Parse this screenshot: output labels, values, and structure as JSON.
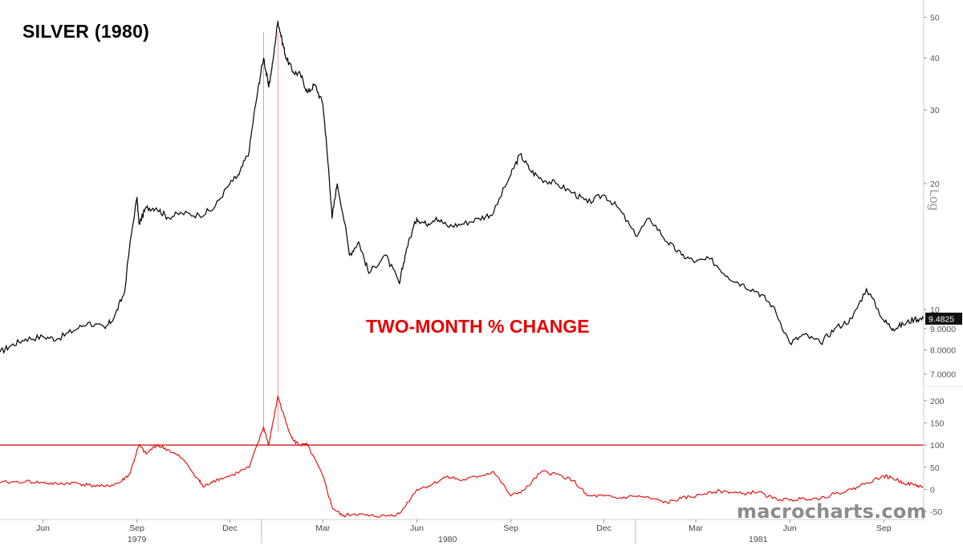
{
  "title": "SILVER (1980)",
  "annotation": "TWO-MONTH % CHANGE",
  "watermark": "macrocharts.com",
  "log_label": "Log",
  "colors": {
    "price": "#000000",
    "change": "#e60000",
    "reference": "#cc0000",
    "marker": "#f08080"
  },
  "chart_data": [
    {
      "type": "line",
      "title": "SILVER (1980)",
      "scale": "log",
      "ylim": [
        6.6,
        55
      ],
      "y_ticks": [
        {
          "value": 50,
          "label": "50"
        },
        {
          "value": 40,
          "label": "40"
        },
        {
          "value": 30,
          "label": "30"
        },
        {
          "value": 20,
          "label": "20"
        },
        {
          "value": 10,
          "label": "10"
        },
        {
          "value": 9,
          "label": "9.0000"
        },
        {
          "value": 8,
          "label": "8.0000"
        },
        {
          "value": 7,
          "label": "7.0000"
        }
      ],
      "last_value_label": "9.4825",
      "last_value": 9.4825,
      "x_ticks": [
        {
          "date": "1979-06-01",
          "label": "Jun"
        },
        {
          "date": "1979-09-01",
          "label": "Sep"
        },
        {
          "date": "1979-12-01",
          "label": "Dec"
        },
        {
          "date": "1980-03-01",
          "label": "Mar"
        },
        {
          "date": "1980-06-01",
          "label": "Jun"
        },
        {
          "date": "1980-09-01",
          "label": "Sep"
        },
        {
          "date": "1980-12-01",
          "label": "Dec"
        },
        {
          "date": "1981-03-01",
          "label": "Mar"
        },
        {
          "date": "1981-06-01",
          "label": "Jun"
        },
        {
          "date": "1981-09-01",
          "label": "Sep"
        }
      ],
      "year_labels": [
        {
          "date": "1979-09-01",
          "label": "1979"
        },
        {
          "date": "1980-07-01",
          "label": "1980"
        },
        {
          "date": "1981-05-01",
          "label": "1981"
        }
      ],
      "xlim": [
        "1979-04-20",
        "1981-10-10"
      ],
      "series": [
        {
          "x": [
            "1979-04-20",
            "1979-05-01",
            "1979-05-15",
            "1979-06-01",
            "1979-06-15",
            "1979-07-01",
            "1979-07-15",
            "1979-08-01",
            "1979-08-10",
            "1979-08-20",
            "1979-09-01",
            "1979-09-03",
            "1979-09-10",
            "1979-09-20",
            "1979-10-01",
            "1979-10-15",
            "1979-11-01",
            "1979-11-15",
            "1979-12-01",
            "1979-12-10",
            "1979-12-20",
            "1979-12-28",
            "1980-01-03",
            "1980-01-08",
            "1980-01-12",
            "1980-01-17",
            "1980-01-21",
            "1980-01-25",
            "1980-02-01",
            "1980-02-08",
            "1980-02-15",
            "1980-02-22",
            "1980-03-01",
            "1980-03-05",
            "1980-03-10",
            "1980-03-15",
            "1980-03-27",
            "1980-04-05",
            "1980-04-15",
            "1980-05-01",
            "1980-05-15",
            "1980-05-22",
            "1980-06-01",
            "1980-06-10",
            "1980-06-20",
            "1980-07-01",
            "1980-07-15",
            "1980-08-01",
            "1980-08-15",
            "1980-09-01",
            "1980-09-10",
            "1980-09-20",
            "1980-10-01",
            "1980-10-15",
            "1980-11-01",
            "1980-11-15",
            "1980-12-01",
            "1980-12-15",
            "1981-01-01",
            "1981-01-15",
            "1981-02-01",
            "1981-02-15",
            "1981-03-01",
            "1981-03-15",
            "1981-04-01",
            "1981-04-15",
            "1981-05-01",
            "1981-05-15",
            "1981-06-01",
            "1981-06-15",
            "1981-07-01",
            "1981-07-15",
            "1981-08-01",
            "1981-08-15",
            "1981-09-01",
            "1981-09-10",
            "1981-09-20",
            "1981-10-01",
            "1981-10-10"
          ],
          "values": [
            7.9,
            8.2,
            8.5,
            8.6,
            8.5,
            8.9,
            9.3,
            9.0,
            9.6,
            11.0,
            18.5,
            16.0,
            17.5,
            17.5,
            16.6,
            17.0,
            16.8,
            17.4,
            20.0,
            21.0,
            24.0,
            33.0,
            40.0,
            34.0,
            39.0,
            49.0,
            44.0,
            40.0,
            37.0,
            36.5,
            33.0,
            34.5,
            31.0,
            24.0,
            16.5,
            20.0,
            13.5,
            14.5,
            12.2,
            13.5,
            11.5,
            14.0,
            16.5,
            16.0,
            16.6,
            15.8,
            16.0,
            16.5,
            17.0,
            21.0,
            23.5,
            21.5,
            20.5,
            20.0,
            19.0,
            18.0,
            18.8,
            17.5,
            15.0,
            16.5,
            14.5,
            13.5,
            13.0,
            13.2,
            12.0,
            11.5,
            11.0,
            10.2,
            8.3,
            8.7,
            8.3,
            9.0,
            9.5,
            11.2,
            9.4,
            9.0,
            9.2,
            9.5,
            9.48
          ]
        }
      ]
    },
    {
      "type": "line",
      "title": "",
      "ylim": [
        -68,
        225
      ],
      "y_ticks": [
        {
          "value": 200,
          "label": "200"
        },
        {
          "value": 150,
          "label": "150"
        },
        {
          "value": 100,
          "label": "100"
        },
        {
          "value": 50,
          "label": "50"
        },
        {
          "value": 0,
          "label": "0"
        },
        {
          "value": -50,
          "label": "-50"
        }
      ],
      "reference_line": 100,
      "markers": [
        "1980-01-03",
        "1980-01-17"
      ],
      "series": [
        {
          "x": [
            "1979-04-20",
            "1979-05-15",
            "1979-06-01",
            "1979-06-15",
            "1979-07-01",
            "1979-07-15",
            "1979-08-01",
            "1979-08-15",
            "1979-08-25",
            "1979-09-03",
            "1979-09-10",
            "1979-09-20",
            "1979-10-01",
            "1979-10-15",
            "1979-11-01",
            "1979-11-05",
            "1979-11-15",
            "1979-12-01",
            "1979-12-20",
            "1980-01-03",
            "1980-01-08",
            "1980-01-12",
            "1980-01-17",
            "1980-01-25",
            "1980-02-01",
            "1980-02-08",
            "1980-02-15",
            "1980-03-01",
            "1980-03-10",
            "1980-03-20",
            "1980-04-01",
            "1980-04-15",
            "1980-05-01",
            "1980-05-15",
            "1980-06-01",
            "1980-06-15",
            "1980-07-01",
            "1980-07-15",
            "1980-08-01",
            "1980-08-15",
            "1980-09-01",
            "1980-09-15",
            "1980-10-01",
            "1980-10-15",
            "1980-11-01",
            "1980-11-15",
            "1980-12-01",
            "1980-12-15",
            "1981-01-01",
            "1981-01-15",
            "1981-02-01",
            "1981-02-15",
            "1981-03-01",
            "1981-03-15",
            "1981-04-01",
            "1981-04-15",
            "1981-05-01",
            "1981-05-15",
            "1981-06-01",
            "1981-06-15",
            "1981-07-01",
            "1981-07-15",
            "1981-08-01",
            "1981-08-15",
            "1981-09-01",
            "1981-09-10",
            "1981-09-20",
            "1981-10-01",
            "1981-10-10"
          ],
          "values": [
            15,
            18,
            15,
            12,
            15,
            10,
            6,
            15,
            35,
            100,
            80,
            100,
            90,
            70,
            20,
            5,
            20,
            30,
            50,
            140,
            100,
            150,
            210,
            150,
            110,
            100,
            100,
            30,
            -40,
            -60,
            -55,
            -60,
            -60,
            -55,
            0,
            10,
            30,
            20,
            30,
            40,
            -15,
            0,
            40,
            35,
            20,
            -15,
            -15,
            -20,
            -15,
            -20,
            -30,
            -20,
            -15,
            -5,
            -5,
            -10,
            -5,
            -20,
            -25,
            -20,
            -20,
            -10,
            0,
            15,
            30,
            25,
            15,
            10,
            5
          ]
        }
      ]
    }
  ]
}
